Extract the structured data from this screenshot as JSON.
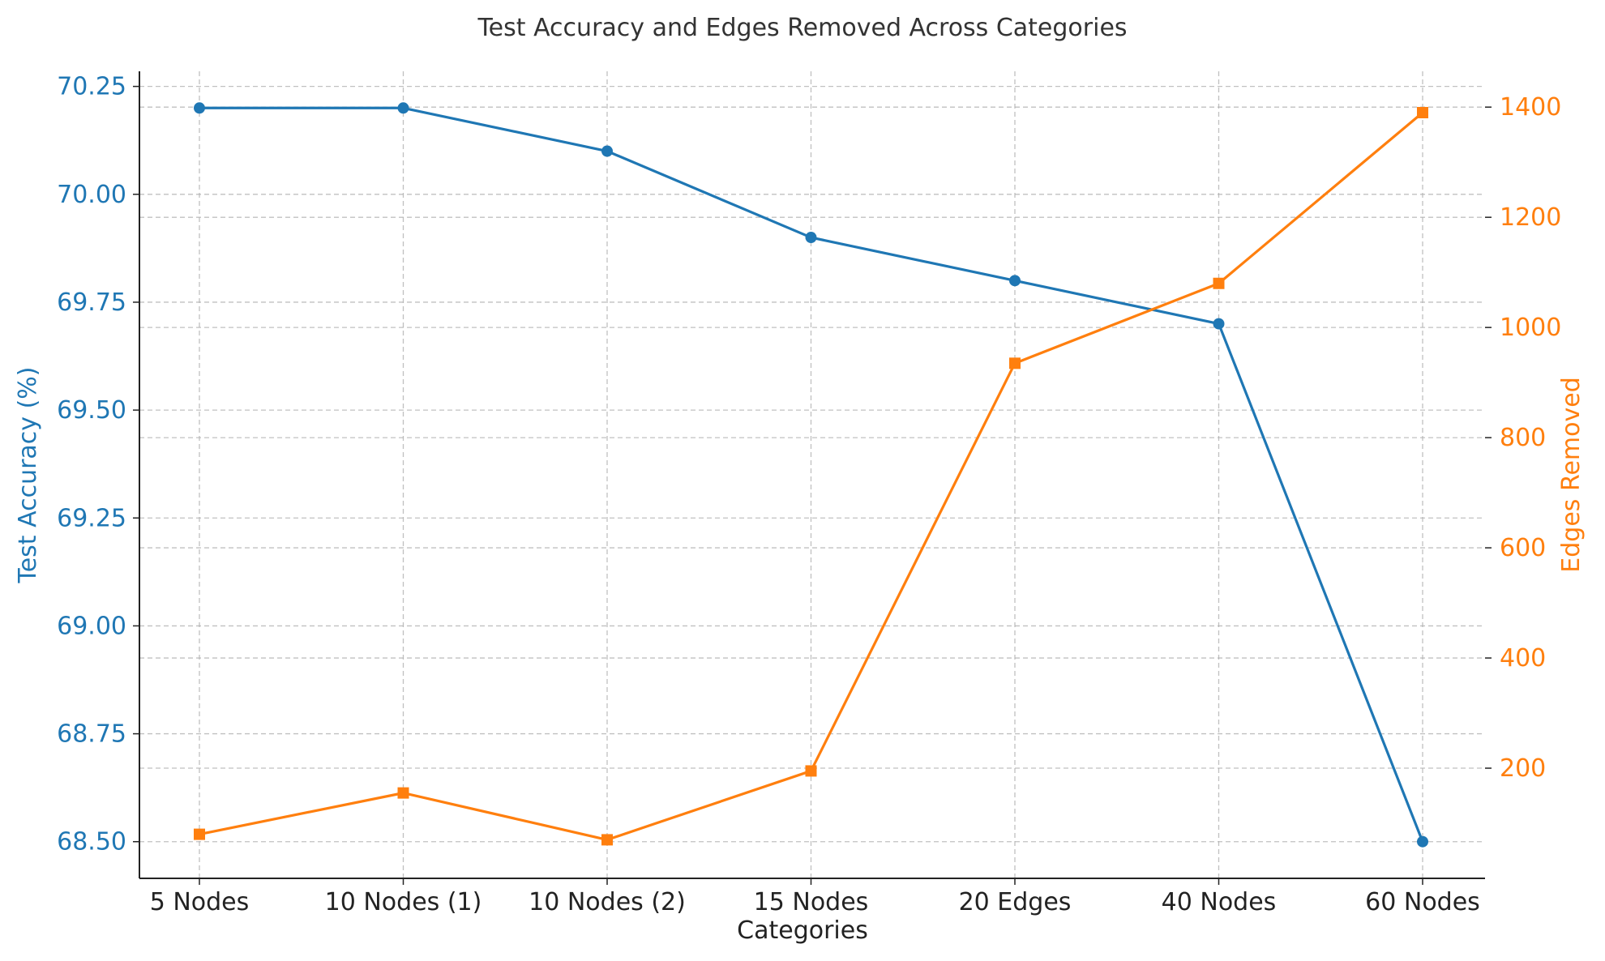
{
  "chart_data": {
    "type": "line",
    "title": "Test Accuracy and Edges Removed Across Categories",
    "xlabel": "Categories",
    "ylabel_left": "Test Accuracy (%)",
    "ylabel_right": "Edges Removed",
    "categories": [
      "5 Nodes",
      "10 Nodes (1)",
      "10 Nodes (2)",
      "15 Nodes",
      "20 Edges",
      "40 Nodes",
      "60 Nodes"
    ],
    "series": [
      {
        "name": "Test Accuracy (%)",
        "axis": "left",
        "color": "#1f77b4",
        "marker": "circle",
        "values": [
          70.2,
          70.2,
          70.1,
          69.9,
          69.8,
          69.7,
          68.5
        ]
      },
      {
        "name": "Edges Removed",
        "axis": "right",
        "color": "#ff7f0e",
        "marker": "square",
        "values": [
          80,
          155,
          70,
          195,
          935,
          1080,
          1390
        ]
      }
    ],
    "ylim_left": [
      68.415,
      70.285
    ],
    "ylim_right": [
      0,
      1465
    ],
    "yticks_left": [
      "68.50",
      "68.75",
      "69.00",
      "69.25",
      "69.50",
      "69.75",
      "70.00",
      "70.25"
    ],
    "yticks_right": [
      "200",
      "400",
      "600",
      "800",
      "1000",
      "1200",
      "1400"
    ],
    "grid": true
  }
}
